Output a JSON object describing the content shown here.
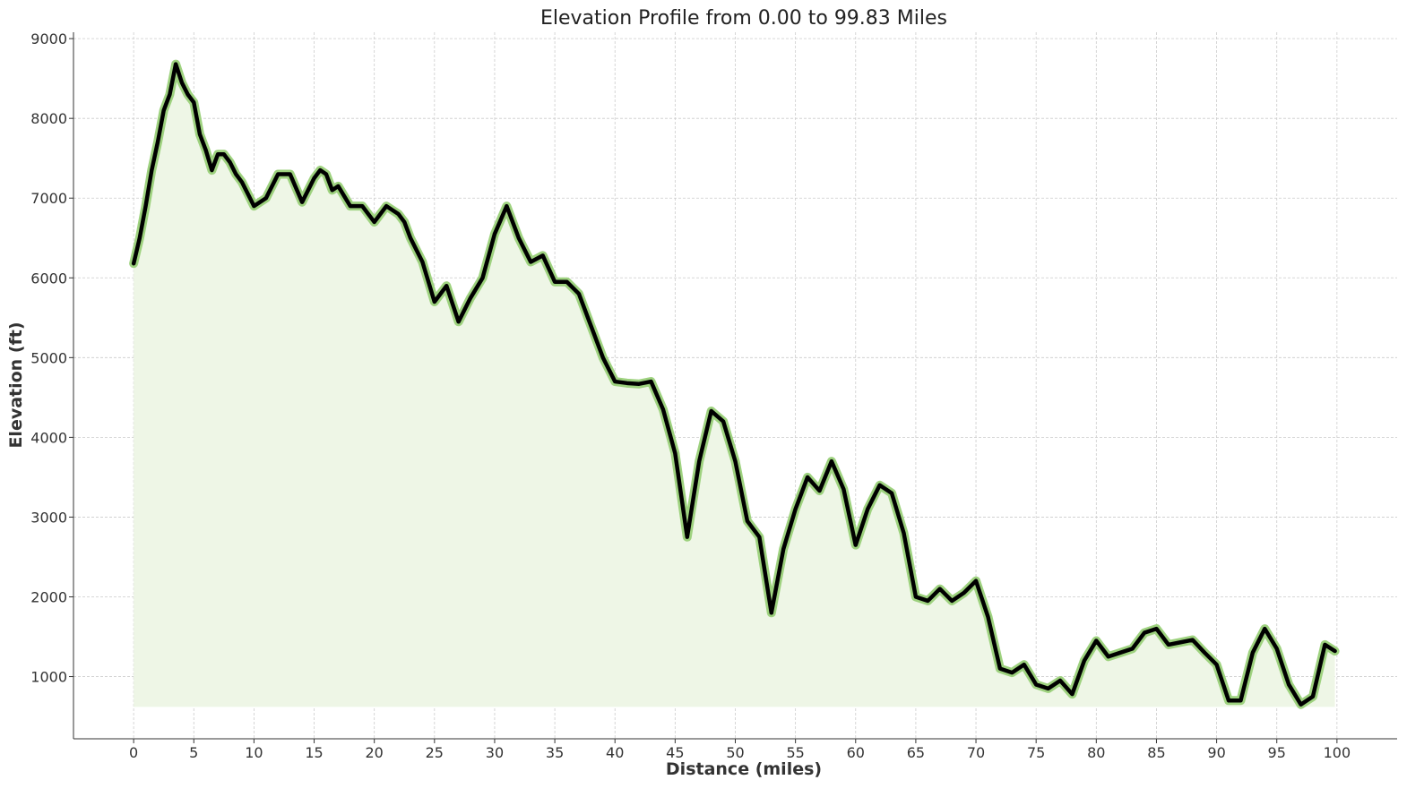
{
  "chart_data": {
    "type": "area",
    "title": "Elevation Profile from 0.00 to 99.83 Miles",
    "xlabel": "Distance (miles)",
    "ylabel": "Elevation (ft)",
    "xlim": [
      -5,
      105
    ],
    "ylim": [
      220,
      9080
    ],
    "x_ticks": [
      0,
      5,
      10,
      15,
      20,
      25,
      30,
      35,
      40,
      45,
      50,
      55,
      60,
      65,
      70,
      75,
      80,
      85,
      90,
      95,
      100
    ],
    "y_ticks": [
      1000,
      2000,
      3000,
      4000,
      5000,
      6000,
      7000,
      8000,
      9000
    ],
    "grid": true,
    "fill_baseline": 620,
    "colors": {
      "line": "#000000",
      "halo": "#9ed27f",
      "fill": "#eef6e6"
    },
    "series": [
      {
        "x": [
          0,
          0.5,
          1,
          1.5,
          2,
          2.5,
          3,
          3.5,
          4,
          4.5,
          5,
          5.5,
          6,
          6.5,
          7,
          7.5,
          8,
          8.5,
          9,
          10,
          11,
          12,
          13,
          14,
          15,
          15.5,
          16,
          16.5,
          17,
          18,
          19,
          20,
          21,
          22,
          22.5,
          23,
          24,
          25,
          25.5,
          26,
          27,
          28,
          29,
          30,
          31,
          32,
          33,
          34,
          35,
          36,
          37,
          38,
          39,
          40,
          41,
          42,
          43,
          44,
          45,
          46,
          47,
          48,
          49,
          50,
          51,
          52,
          53,
          54,
          55,
          56,
          57,
          58,
          59,
          60,
          61,
          62,
          63,
          64,
          65,
          66,
          67,
          68,
          69,
          70,
          71,
          72,
          73,
          74,
          75,
          76,
          77,
          78,
          79,
          80,
          81,
          82,
          83,
          84,
          85,
          86,
          87,
          88,
          89,
          90,
          91,
          92,
          93,
          94,
          95,
          96,
          97,
          98,
          99,
          99.83
        ],
        "y": [
          6180,
          6500,
          6900,
          7350,
          7700,
          8100,
          8300,
          8680,
          8450,
          8300,
          8200,
          7800,
          7600,
          7350,
          7550,
          7550,
          7450,
          7300,
          7200,
          6900,
          7000,
          7300,
          7300,
          6950,
          7250,
          7350,
          7300,
          7100,
          7150,
          6900,
          6900,
          6700,
          6900,
          6800,
          6700,
          6500,
          6200,
          5700,
          5800,
          5900,
          5450,
          5750,
          6000,
          6550,
          6900,
          6500,
          6200,
          6280,
          5950,
          5950,
          5800,
          5400,
          5000,
          4700,
          4680,
          4670,
          4700,
          4350,
          3800,
          2750,
          3700,
          4330,
          4200,
          3700,
          2950,
          2750,
          1800,
          2600,
          3100,
          3500,
          3330,
          3700,
          3350,
          2650,
          3100,
          3400,
          3300,
          2800,
          2000,
          1950,
          2100,
          1950,
          2050,
          2200,
          1750,
          1100,
          1050,
          1150,
          900,
          850,
          950,
          780,
          1200,
          1450,
          1250,
          1300,
          1350,
          1550,
          1600,
          1400,
          1430,
          1460,
          1300,
          1150,
          700,
          700,
          1300,
          1600,
          1350,
          900,
          650,
          750,
          1400,
          1320
        ]
      }
    ]
  }
}
